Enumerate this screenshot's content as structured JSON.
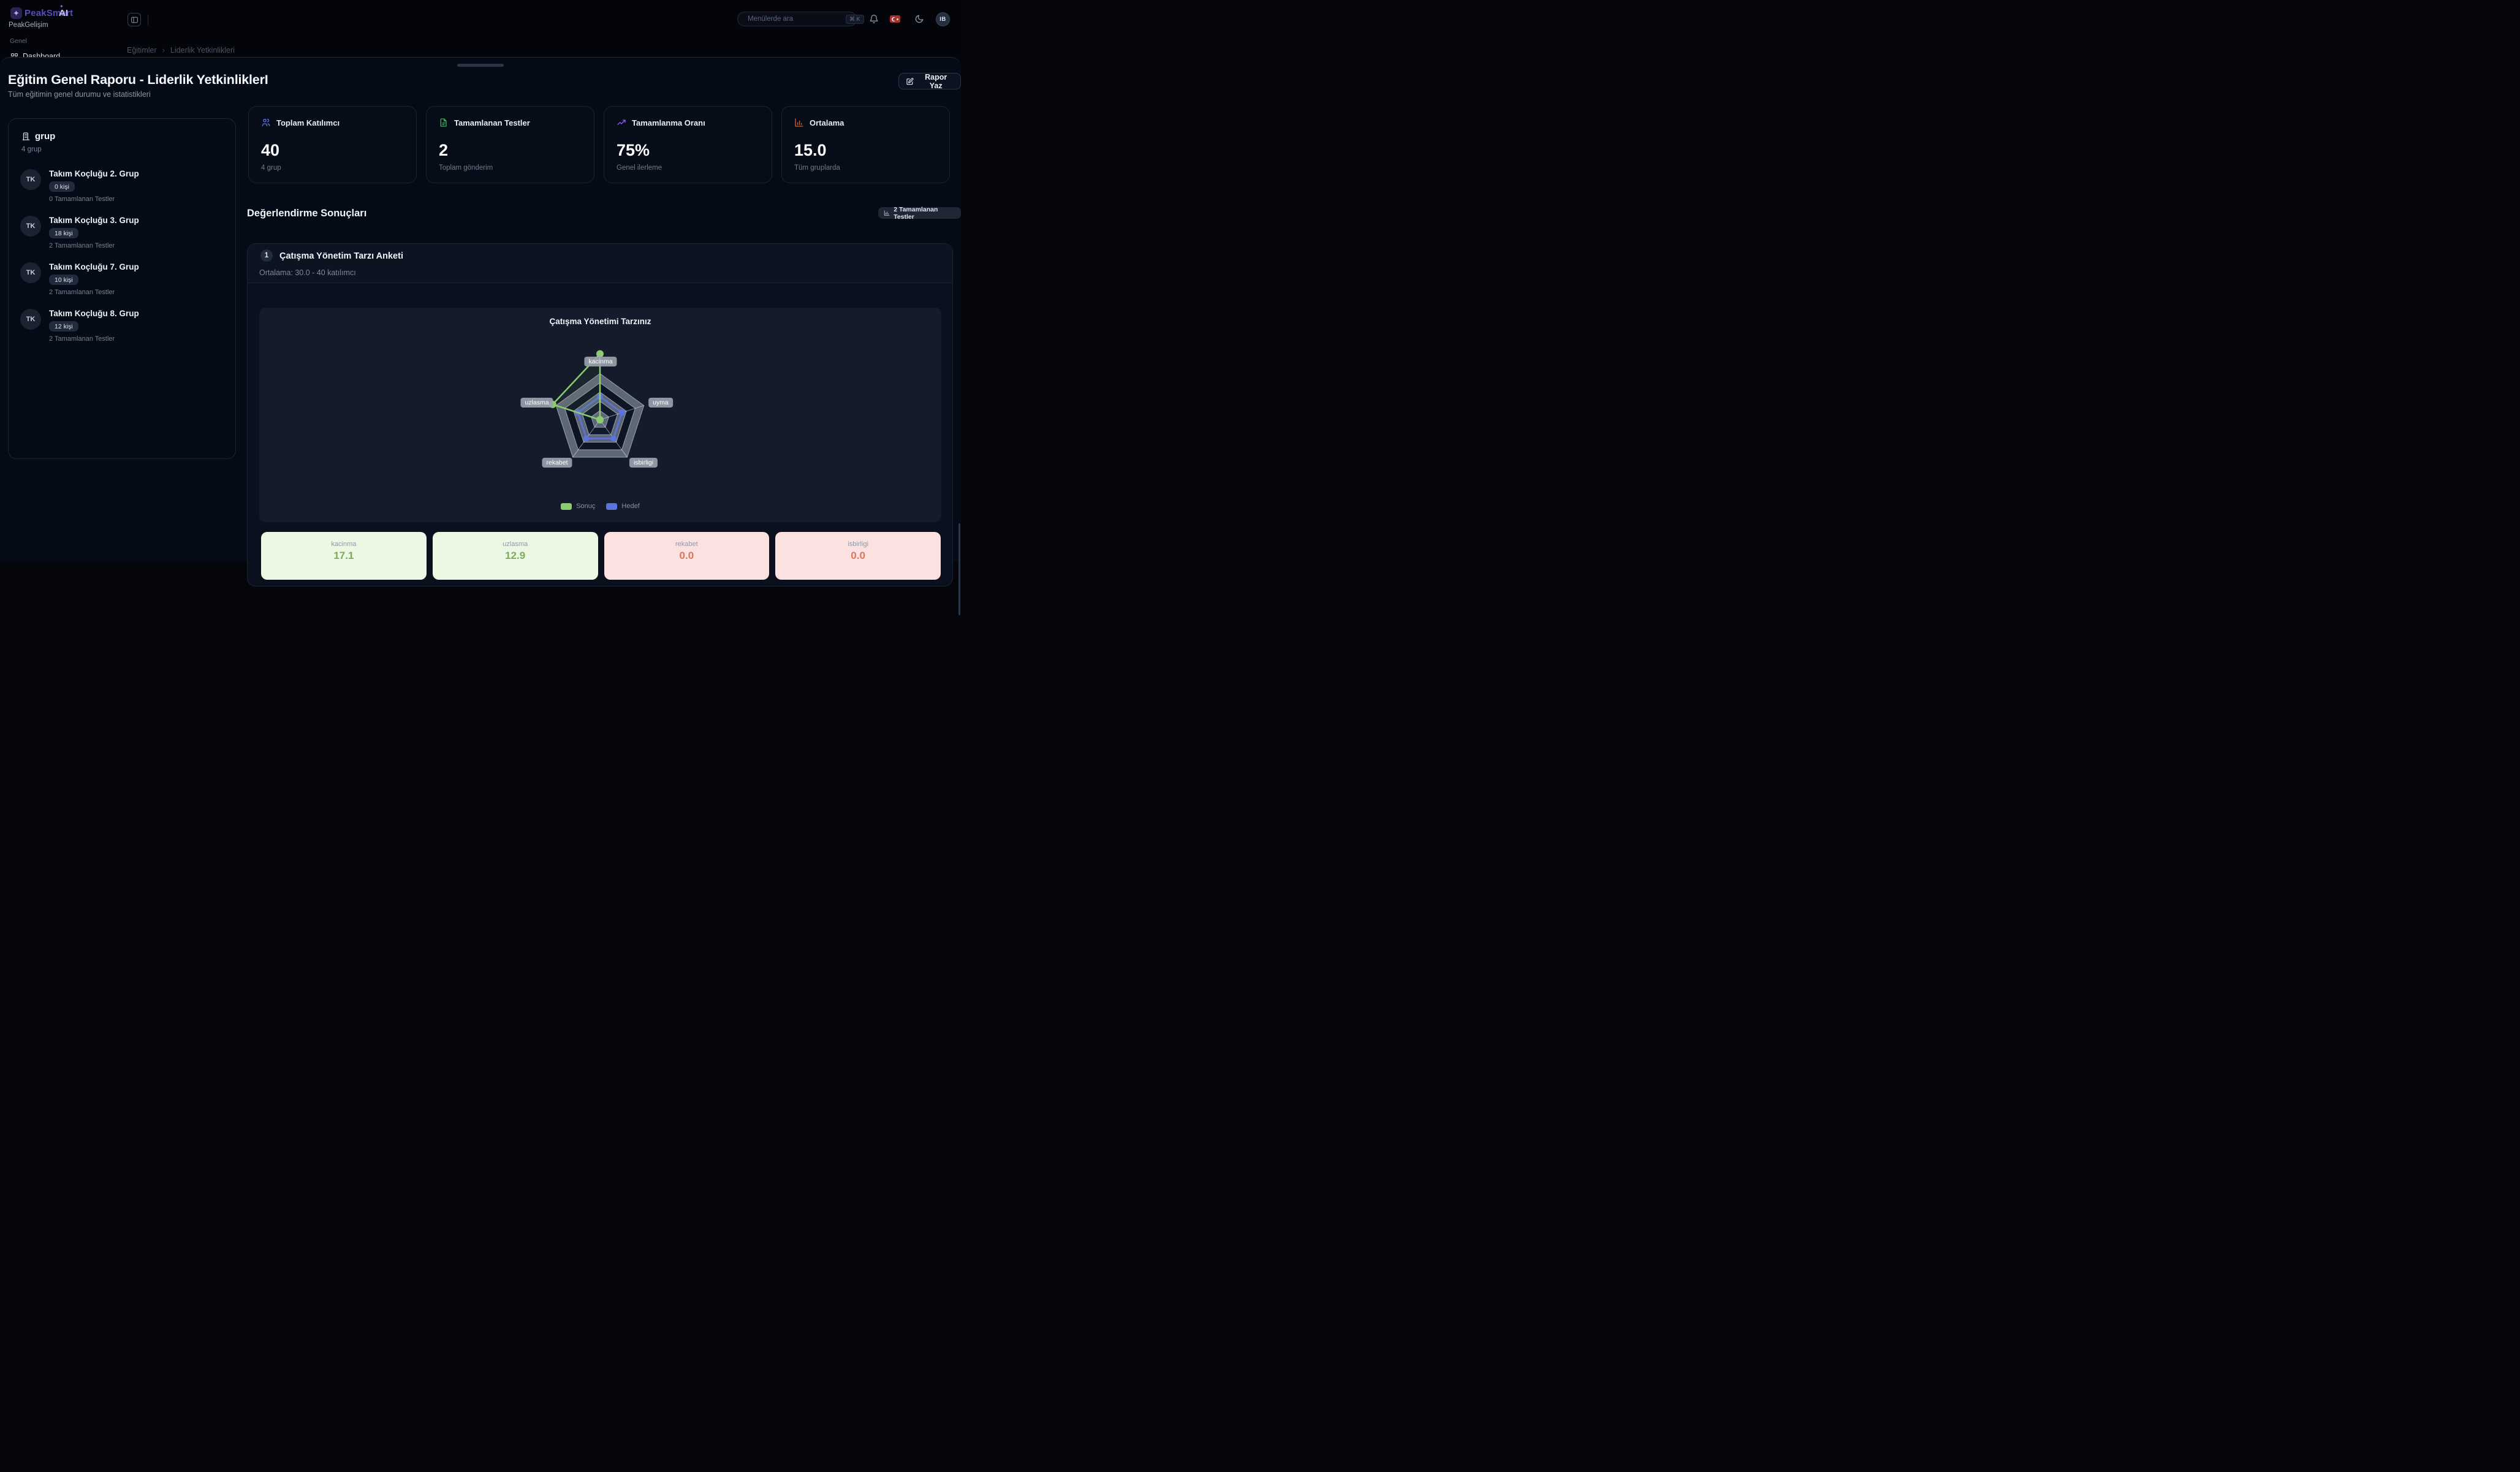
{
  "topbar": {
    "logo": {
      "brand": "PeakSmart",
      "suffix": "AI",
      "icon": "sparkle-icon"
    },
    "org": "PeakGelişim",
    "section": "Genel",
    "dashboard_item": "Dashboard",
    "search": {
      "placeholder": "Menülerde ara",
      "shortcut": "⌘ K",
      "icon": "search-icon"
    },
    "icons": [
      "panel-toggle-icon",
      "bell-icon",
      "turkish-flag-icon",
      "moon-icon"
    ],
    "user_initials": "IB"
  },
  "breadcrumb": {
    "items": [
      "Eğitimler",
      "Liderlik Yetkinlikleri"
    ]
  },
  "modal": {
    "title": "Eğitim Genel Raporu - Liderlik YetkinliklerI",
    "subtitle": "Tüm eğitimin genel durumu ve istatistikleri",
    "report_button": {
      "label": "Rapor Yaz",
      "icon": "edit-icon"
    },
    "groups_panel": {
      "title": "grup",
      "subtitle": "4 grup",
      "icon": "building-icon",
      "items": [
        {
          "initials": "TK",
          "name": "Takım Koçluğu 2. Grup",
          "badge": "0 kişi",
          "tests": "0 Tamamlanan Testler"
        },
        {
          "initials": "TK",
          "name": "Takım Koçluğu 3. Grup",
          "badge": "18 kişi",
          "tests": "2 Tamamlanan Testler"
        },
        {
          "initials": "TK",
          "name": "Takım Koçluğu 7. Grup",
          "badge": "10 kişi",
          "tests": "2 Tamamlanan Testler"
        },
        {
          "initials": "TK",
          "name": "Takım Koçluğu 8. Grup",
          "badge": "12 kişi",
          "tests": "2 Tamamlanan Testler"
        }
      ]
    },
    "stats": [
      {
        "label": "Toplam Katılımcı",
        "value": "40",
        "sub": "4 grup",
        "icon": "users-icon",
        "color": "#5b74dd"
      },
      {
        "label": "Tamamlanan Testler",
        "value": "2",
        "sub": "Toplam gönderim",
        "icon": "document-icon",
        "color": "#3cb15c"
      },
      {
        "label": "Tamamlanma Oranı",
        "value": "75%",
        "sub": "Genel ilerleme",
        "icon": "trend-icon",
        "color": "#8b5cf6"
      },
      {
        "label": "Ortalama",
        "value": "15.0",
        "sub": "Tüm gruplarda",
        "icon": "barchart-icon",
        "color": "#dd5f28"
      }
    ],
    "results_section": {
      "title": "Değerlendirme Sonuçları",
      "badge": {
        "label": "2 Tamamlanan Testler",
        "icon": "barchart-icon"
      },
      "survey": {
        "index": "1",
        "title": "Çatışma Yönetim Tarzı Anketi",
        "subtitle": "Ortalama: 30.0 - 40 katılımcı"
      }
    }
  },
  "chart_data": {
    "type": "radar",
    "title": "Çatışma Yönetimi Tarzınız",
    "axes": [
      "kacinma",
      "uyma",
      "isbirligi",
      "rekabet",
      "uzlasma"
    ],
    "series": [
      {
        "name": "Sonuç",
        "color": "#8ccb6e",
        "values": [
          17.1,
          0,
          0,
          0,
          12.9
        ]
      },
      {
        "name": "Hedef",
        "color": "#5b74dd",
        "values": [
          6,
          6,
          6,
          6,
          6
        ]
      }
    ],
    "scale_max": 12,
    "rings": 5,
    "grid": "alternating-filled-pentagons",
    "legend_position": "bottom"
  },
  "summary_cards": [
    {
      "label": "kacinma",
      "value": "17.1",
      "tone": "positive"
    },
    {
      "label": "uzlasma",
      "value": "12.9",
      "tone": "positive"
    },
    {
      "label": "rekabet",
      "value": "0.0",
      "tone": "negative"
    },
    {
      "label": "isbirligi",
      "value": "0.0",
      "tone": "negative"
    }
  ]
}
